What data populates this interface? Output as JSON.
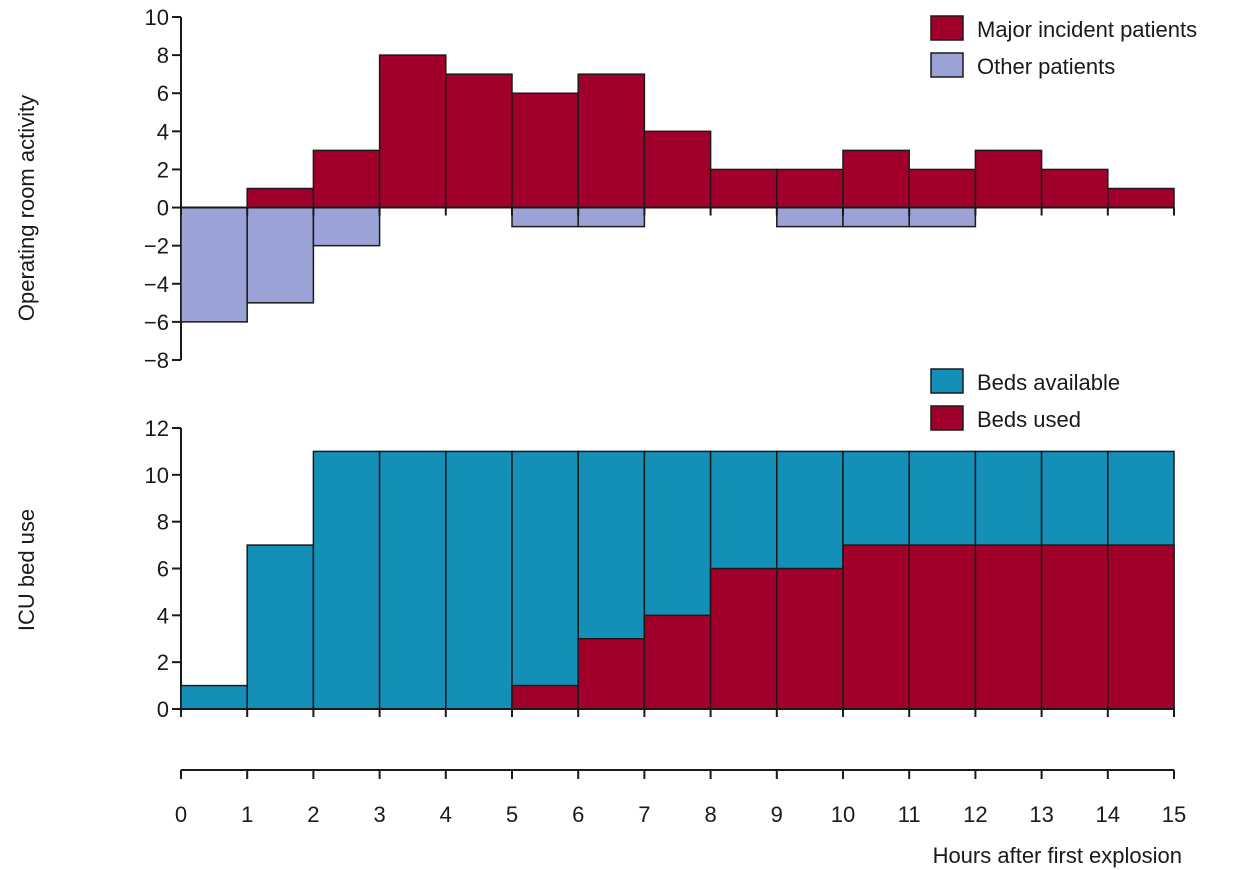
{
  "colors": {
    "major": "#a1002b",
    "other": "#9aa2d6",
    "available": "#1490b8",
    "used": "#a1002b"
  },
  "x_axis": {
    "label": "Hours after first explosion",
    "ticks": [
      0,
      1,
      2,
      3,
      4,
      5,
      6,
      7,
      8,
      9,
      10,
      11,
      12,
      13,
      14,
      15
    ],
    "range": [
      0,
      15
    ]
  },
  "chart_data": [
    {
      "type": "bar",
      "ylabel": "Operating room activity",
      "ylim": [
        -8,
        10
      ],
      "yticks": [
        10,
        8,
        6,
        4,
        2,
        0,
        -2,
        -4,
        -6,
        -8
      ],
      "x_bins": [
        [
          0,
          1
        ],
        [
          1,
          2
        ],
        [
          2,
          3
        ],
        [
          3,
          4
        ],
        [
          4,
          5
        ],
        [
          5,
          6
        ],
        [
          6,
          7
        ],
        [
          7,
          8
        ],
        [
          8,
          9
        ],
        [
          9,
          10
        ],
        [
          10,
          11
        ],
        [
          11,
          12
        ],
        [
          12,
          13
        ],
        [
          13,
          14
        ],
        [
          14,
          15
        ]
      ],
      "legend_position": "top-right",
      "series": [
        {
          "name": "Major incident patients",
          "color_key": "major",
          "values": [
            0,
            1,
            3,
            8,
            7,
            6,
            7,
            4,
            2,
            2,
            3,
            2,
            3,
            2,
            1
          ]
        },
        {
          "name": "Other patients",
          "color_key": "other",
          "values": [
            -6,
            -5,
            -2,
            0,
            0,
            -1,
            -1,
            0,
            0,
            -1,
            -1,
            -1,
            0,
            0,
            0
          ]
        }
      ]
    },
    {
      "type": "bar",
      "ylabel": "ICU bed use",
      "ylim": [
        0,
        12
      ],
      "yticks": [
        12,
        10,
        8,
        6,
        4,
        2,
        0
      ],
      "x_bins": [
        [
          0,
          1
        ],
        [
          1,
          2
        ],
        [
          2,
          3
        ],
        [
          3,
          4
        ],
        [
          4,
          5
        ],
        [
          5,
          6
        ],
        [
          6,
          7
        ],
        [
          7,
          8
        ],
        [
          8,
          9
        ],
        [
          9,
          10
        ],
        [
          10,
          11
        ],
        [
          11,
          12
        ],
        [
          12,
          13
        ],
        [
          13,
          14
        ],
        [
          14,
          15
        ]
      ],
      "legend_position": "top-right",
      "stacking": "overlay",
      "series": [
        {
          "name": "Beds available",
          "color_key": "available",
          "values": [
            1,
            7,
            11,
            11,
            11,
            11,
            11,
            11,
            11,
            11,
            11,
            11,
            11,
            11,
            11
          ]
        },
        {
          "name": "Beds used",
          "color_key": "used",
          "values": [
            0,
            0,
            0,
            0,
            0,
            1,
            3,
            4,
            6,
            6,
            7,
            7,
            7,
            7,
            7
          ]
        }
      ]
    }
  ]
}
